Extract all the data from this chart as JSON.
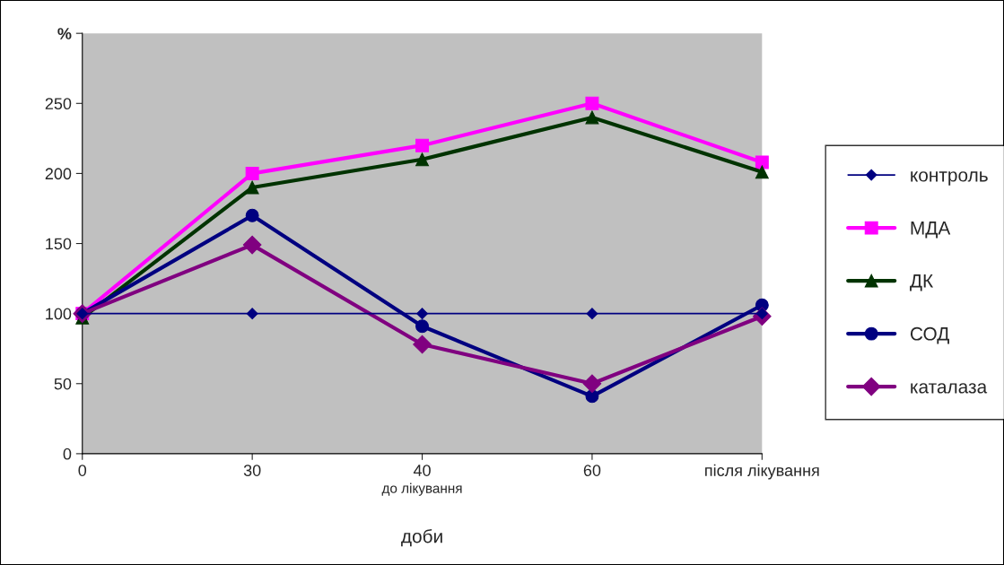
{
  "chart_data": {
    "type": "line",
    "xlabel": "доби",
    "categories": [
      "0",
      "30",
      "40",
      "60",
      "після лікування"
    ],
    "series": [
      {
        "name": "контроль",
        "color": "#000080",
        "marker": "diamond",
        "values": [
          100,
          100,
          100,
          100,
          100
        ]
      },
      {
        "name": "МДА",
        "color": "#ff00ff",
        "marker": "square",
        "values": [
          100,
          200,
          220,
          250,
          208
        ]
      },
      {
        "name": "ДК",
        "color": "#003300",
        "marker": "triangle",
        "values": [
          97,
          190,
          210,
          240,
          201
        ]
      },
      {
        "name": "СОД",
        "color": "#000080",
        "marker": "circle",
        "values": [
          100,
          170,
          91,
          41,
          106
        ]
      },
      {
        "name": "каталаза",
        "color": "#800080",
        "marker": "diamond",
        "values": [
          100,
          149,
          78,
          50,
          98
        ]
      }
    ],
    "annotations": [
      "до лікування"
    ],
    "ylim": [
      0,
      300
    ],
    "yticks": [
      0,
      50,
      100,
      150,
      200,
      250,
      {
        "value": 300,
        "label": "%"
      }
    ],
    "grid": false,
    "legend": "right"
  }
}
